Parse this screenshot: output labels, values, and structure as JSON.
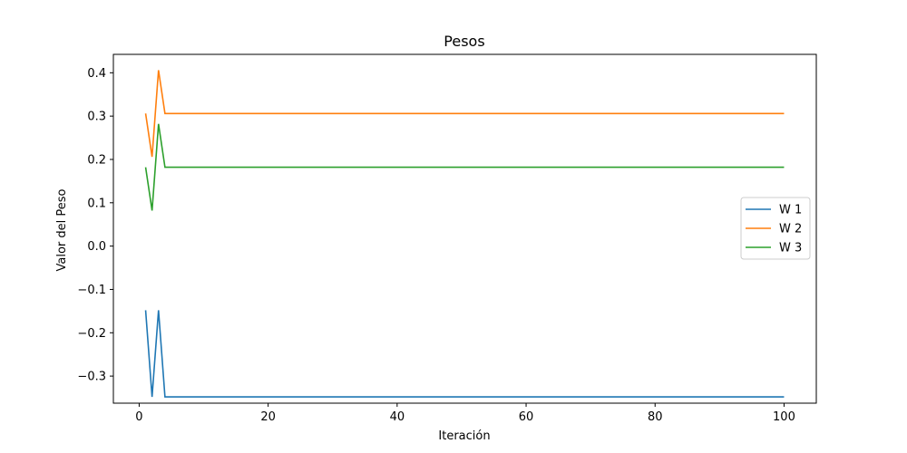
{
  "chart_data": {
    "type": "line",
    "title": "Pesos",
    "xlabel": "Iteración",
    "ylabel": "Valor del Peso",
    "xlim": [
      -4,
      105
    ],
    "ylim": [
      -0.3625,
      0.4425
    ],
    "xticks": [
      0,
      20,
      40,
      60,
      80,
      100
    ],
    "yticks": [
      -0.3,
      -0.2,
      -0.1,
      0.0,
      0.1,
      0.2,
      0.3,
      0.4
    ],
    "ytick_labels": [
      "−0.3",
      "−0.2",
      "−0.1",
      "0.0",
      "0.1",
      "0.2",
      "0.3",
      "0.4"
    ],
    "grid": false,
    "legend_position": "center-right",
    "series": [
      {
        "name": "W 1",
        "color": "#1f77b4",
        "x": [
          1,
          2,
          3,
          4,
          100
        ],
        "y": [
          -0.148,
          -0.348,
          -0.148,
          -0.348,
          -0.348
        ]
      },
      {
        "name": "W 2",
        "color": "#ff7f0e",
        "x": [
          1,
          2,
          3,
          4,
          100
        ],
        "y": [
          0.306,
          0.206,
          0.406,
          0.306,
          0.306
        ]
      },
      {
        "name": "W 3",
        "color": "#2ca02c",
        "x": [
          1,
          2,
          3,
          4,
          100
        ],
        "y": [
          0.182,
          0.082,
          0.282,
          0.182,
          0.182
        ]
      }
    ]
  }
}
